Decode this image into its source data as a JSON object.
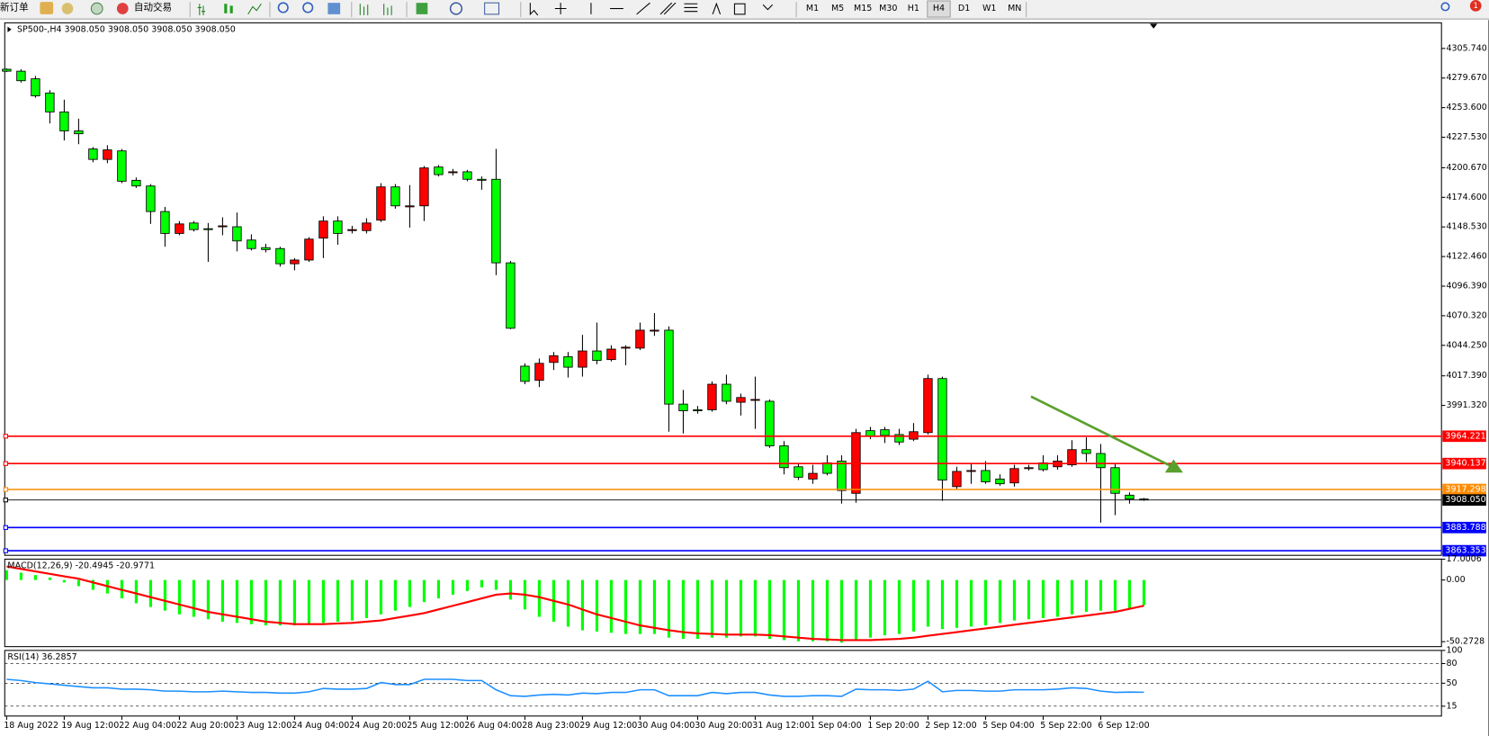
{
  "toolbar": {
    "new_order": "新订单",
    "auto_trading": "自动交易",
    "timeframes": [
      "M1",
      "M5",
      "M15",
      "M30",
      "H1",
      "H4",
      "D1",
      "W1",
      "MN"
    ],
    "notifications": "1"
  },
  "chart_data": [
    {
      "type": "candlestick",
      "title": "SP500-,H4  3908.050 3908.050 3908.050 3908.050",
      "categories": [
        "18 Aug 2022",
        null,
        null,
        null,
        "19 Aug 12:00",
        null,
        null,
        null,
        "22 Aug 04:00",
        null,
        null,
        null,
        "22 Aug 20:00",
        null,
        null,
        null,
        "23 Aug 12:00",
        null,
        null,
        null,
        "24 Aug 04:00",
        null,
        null,
        null,
        "24 Aug 20:00",
        null,
        null,
        null,
        "25 Aug 12:00",
        null,
        null,
        null,
        "26 Aug 04:00",
        null,
        null,
        null,
        "28 Aug 23:00",
        null,
        null,
        null,
        "29 Aug 12:00",
        null,
        null,
        null,
        "30 Aug 04:00",
        null,
        null,
        null,
        "30 Aug 20:00",
        null,
        null,
        null,
        "31 Aug 12:00",
        null,
        null,
        null,
        "1 Sep 04:00",
        null,
        null,
        null,
        "1 Sep 20:00",
        null,
        null,
        null,
        "2 Sep 12:00",
        null,
        null,
        null,
        "5 Sep 04:00",
        null,
        null,
        null,
        "5 Sep 22:00",
        null,
        null,
        null,
        "6 Sep 12:00",
        null,
        null,
        null
      ],
      "open": [
        4287.4,
        4285.7,
        4279.0,
        4266.5,
        4249.8,
        4233.1,
        4217.2,
        4208.0,
        4215.5,
        4189.6,
        4184.6,
        4162.1,
        4142.8,
        4152.0,
        4147.0,
        4148.7,
        4148.7,
        4137.0,
        4130.3,
        4129.5,
        4116.1,
        4119.4,
        4138.7,
        4153.7,
        4145.3,
        4145.3,
        4154.5,
        4183.8,
        4166.2,
        4167.1,
        4201.3,
        4196.3,
        4197.1,
        4190.5,
        4190.5,
        4116.9,
        4025.9,
        4013.4,
        4029.2,
        4034.2,
        4025.0,
        4039.3,
        4031.7,
        4041.8,
        4041.8,
        4057.6,
        4057.6,
        3992.5,
        3987.5,
        3987.5,
        4010.0,
        3994.1,
        3995.8,
        3995.0,
        3955.7,
        3937.3,
        3926.5,
        3940.7,
        3942.3,
        3913.9,
        3969.1,
        3969.9,
        3965.7,
        3961.6,
        3967.4,
        4015.0,
        3919.8,
        3933.2,
        3934.0,
        3926.5,
        3923.1,
        3935.7,
        3940.7,
        3937.3,
        3939.0,
        3952.4,
        3949.0,
        3936.5,
        3912.3,
        3908.9
      ],
      "high": [
        4288.2,
        4287.4,
        4281.5,
        4269.0,
        4260.6,
        4243.9,
        4218.9,
        4220.5,
        4217.2,
        4192.1,
        4186.3,
        4166.2,
        4153.7,
        4153.7,
        4152.0,
        4157.0,
        4161.2,
        4142.0,
        4133.7,
        4131.1,
        4121.1,
        4139.5,
        4157.9,
        4157.9,
        4149.5,
        4156.2,
        4187.1,
        4186.3,
        4185.4,
        4202.2,
        4203.0,
        4199.6,
        4198.8,
        4193.0,
        4217.2,
        4118.6,
        4028.4,
        4032.6,
        4038.4,
        4038.4,
        4053.5,
        4064.3,
        4044.3,
        4044.3,
        4064.3,
        4072.7,
        4061.0,
        4005.0,
        3990.8,
        4012.5,
        4018.4,
        4001.7,
        4016.7,
        3996.6,
        3959.9,
        3940.7,
        3939.0,
        3947.4,
        3947.4,
        3970.7,
        3972.4,
        3972.4,
        3970.7,
        3975.8,
        4018.4,
        4016.7,
        3937.3,
        3940.7,
        3942.3,
        3930.6,
        3939.0,
        3939.0,
        3947.4,
        3947.4,
        3960.7,
        3963.2,
        3957.4,
        3940.7,
        3914.8,
        3909.8
      ],
      "low": [
        4284.9,
        4275.7,
        4262.3,
        4239.7,
        4224.7,
        4221.4,
        4205.5,
        4204.7,
        4187.1,
        4182.9,
        4151.2,
        4131.1,
        4141.2,
        4144.5,
        4117.8,
        4141.2,
        4127.0,
        4127.8,
        4126.1,
        4113.6,
        4110.3,
        4117.8,
        4121.1,
        4132.8,
        4142.8,
        4142.8,
        4152.9,
        4164.6,
        4147.9,
        4153.7,
        4193.0,
        4193.8,
        4188.8,
        4181.3,
        4106.1,
        4058.5,
        4010.0,
        4007.5,
        4022.5,
        4015.9,
        4016.7,
        4027.6,
        4030.1,
        4026.7,
        4040.1,
        4052.6,
        3968.2,
        3966.6,
        3984.1,
        3985.8,
        3992.5,
        3982.4,
        3970.7,
        3954.0,
        3930.6,
        3925.6,
        3922.3,
        3929.8,
        3904.8,
        3905.6,
        3961.6,
        3958.2,
        3956.5,
        3959.9,
        3965.7,
        3907.3,
        3917.3,
        3922.3,
        3922.3,
        3920.6,
        3919.8,
        3934.0,
        3933.2,
        3934.8,
        3937.3,
        3941.5,
        3888.1,
        3894.7,
        3904.8,
        3907.3
      ],
      "close": [
        4285.7,
        4277.3,
        4264.0,
        4249.8,
        4233.1,
        4230.6,
        4208.0,
        4216.4,
        4188.8,
        4184.6,
        4162.1,
        4142.8,
        4151.2,
        4146.2,
        4146.2,
        4149.5,
        4136.2,
        4129.5,
        4128.6,
        4116.1,
        4119.4,
        4137.8,
        4153.7,
        4142.8,
        4146.2,
        4152.0,
        4183.8,
        4167.1,
        4167.1,
        4200.5,
        4194.6,
        4197.1,
        4190.5,
        4189.6,
        4116.9,
        4059.3,
        4012.5,
        4028.4,
        4035.1,
        4025.0,
        4039.3,
        4030.9,
        4040.9,
        4042.6,
        4057.6,
        4057.6,
        3992.5,
        3986.6,
        3986.6,
        4010.0,
        3995.0,
        3998.3,
        3996.6,
        3955.7,
        3936.5,
        3928.1,
        3931.5,
        3931.5,
        3916.4,
        3967.4,
        3964.1,
        3964.9,
        3959.1,
        3968.2,
        4015.0,
        3925.6,
        3933.2,
        3934.0,
        3924.0,
        3922.3,
        3935.7,
        3936.5,
        3934.8,
        3942.3,
        3952.4,
        3949.0,
        3936.5,
        3913.9,
        3908.9,
        3908.05
      ],
      "up_color": "#ff0000",
      "down_color": "#00ff00",
      "ylim": [
        3859.3,
        4328.3
      ],
      "yticks": [
        {
          "value": 4305.74,
          "label": "4305.740"
        },
        {
          "value": 4279.67,
          "label": "4279.670"
        },
        {
          "value": 4253.6,
          "label": "4253.600"
        },
        {
          "value": 4227.53,
          "label": "4227.530"
        },
        {
          "value": 4200.67,
          "label": "4200.670"
        },
        {
          "value": 4174.6,
          "label": "4174.600"
        },
        {
          "value": 4148.53,
          "label": "4148.530"
        },
        {
          "value": 4122.46,
          "label": "4122.460"
        },
        {
          "value": 4096.39,
          "label": "4096.390"
        },
        {
          "value": 4070.32,
          "label": "4070.320"
        },
        {
          "value": 4044.25,
          "label": "4044.250"
        },
        {
          "value": 4017.39,
          "label": "4017.390"
        },
        {
          "value": 3991.32,
          "label": "3991.320"
        }
      ],
      "levels": [
        {
          "value": 3964.221,
          "color": "#ff0000"
        },
        {
          "value": 3940.137,
          "color": "#ff0000"
        },
        {
          "value": 3917.298,
          "color": "#ff8c00"
        },
        {
          "value": 3908.05,
          "label": "3908.050",
          "color": "#000000"
        },
        {
          "value": 3883.788,
          "color": "#0000ff"
        },
        {
          "value": 3863.353,
          "color": "#0000ff"
        }
      ]
    },
    {
      "type": "macd",
      "title": "MACD(12,26,9) -20.4945 -20.9771",
      "histogram": {
        "color": "#00ff00",
        "values": [
          8,
          6,
          4,
          2,
          -2,
          -5,
          -8,
          -11,
          -15,
          -19,
          -22,
          -25,
          -28,
          -30,
          -32,
          -34,
          -35,
          -36,
          -37,
          -37,
          -37,
          -36,
          -35,
          -34,
          -33,
          -31,
          -28,
          -25,
          -22,
          -18,
          -15,
          -12,
          -9,
          -6,
          -8,
          -16,
          -24,
          -30,
          -34,
          -38,
          -41,
          -42,
          -43,
          -44,
          -44,
          -44,
          -47,
          -48,
          -48,
          -47,
          -47,
          -46,
          -46,
          -48,
          -49,
          -50,
          -50,
          -50,
          -51,
          -49,
          -47,
          -45,
          -44,
          -42,
          -38,
          -40,
          -39,
          -38,
          -37,
          -35,
          -33,
          -32,
          -31,
          -30,
          -28,
          -26,
          -25,
          -25,
          -24,
          -20.4945
        ]
      },
      "signal": {
        "color": "#ff0000",
        "values": [
          11,
          9,
          7,
          5,
          3,
          1,
          -2,
          -5,
          -8,
          -11,
          -14,
          -17,
          -20,
          -23,
          -26,
          -28,
          -30,
          -32,
          -34,
          -35,
          -36,
          -36,
          -36,
          -35.5,
          -35,
          -34,
          -33,
          -31,
          -29,
          -27,
          -24,
          -21,
          -18,
          -15,
          -12,
          -11,
          -12,
          -14,
          -17,
          -20,
          -24,
          -28,
          -31,
          -34,
          -37,
          -39,
          -41,
          -42.5,
          -43.5,
          -44,
          -44.5,
          -44.5,
          -44.5,
          -45,
          -46,
          -47,
          -48,
          -48.5,
          -49,
          -49,
          -49,
          -48.5,
          -48,
          -47,
          -45.5,
          -44,
          -42.5,
          -41,
          -39.5,
          -38,
          -36.5,
          -35,
          -33.5,
          -32,
          -30.5,
          -29,
          -27.5,
          -26,
          -23.5,
          -20.9771
        ]
      },
      "ylim": [
        -54.3,
        17.0006
      ],
      "yticks": [
        17.0006,
        {
          "value": 0,
          "label": "0.00"
        },
        -50.2728
      ]
    },
    {
      "type": "line",
      "title": "RSI(14) 36.2857",
      "color": "#1e90ff",
      "values": [
        56,
        54,
        51,
        49,
        47,
        45,
        43,
        43,
        41,
        41,
        40,
        38,
        38,
        37,
        37,
        38,
        37,
        36,
        36,
        35,
        35,
        37,
        42,
        41,
        41,
        42,
        51,
        48,
        48,
        56,
        56,
        56,
        54,
        54,
        40,
        31,
        30,
        32,
        33,
        32,
        35,
        34,
        36,
        36,
        40,
        40,
        31,
        31,
        31,
        36,
        34,
        36,
        36,
        32,
        30,
        30,
        31,
        31,
        30,
        41,
        40,
        40,
        39,
        41,
        53,
        37,
        39,
        39,
        38,
        38,
        40,
        40,
        40,
        41,
        43,
        42,
        38,
        36,
        36.5,
        36.2857
      ],
      "ylim": [
        0,
        100
      ],
      "yticks": [
        100,
        80,
        50,
        15
      ],
      "levels": [
        80,
        50,
        15
      ]
    }
  ]
}
